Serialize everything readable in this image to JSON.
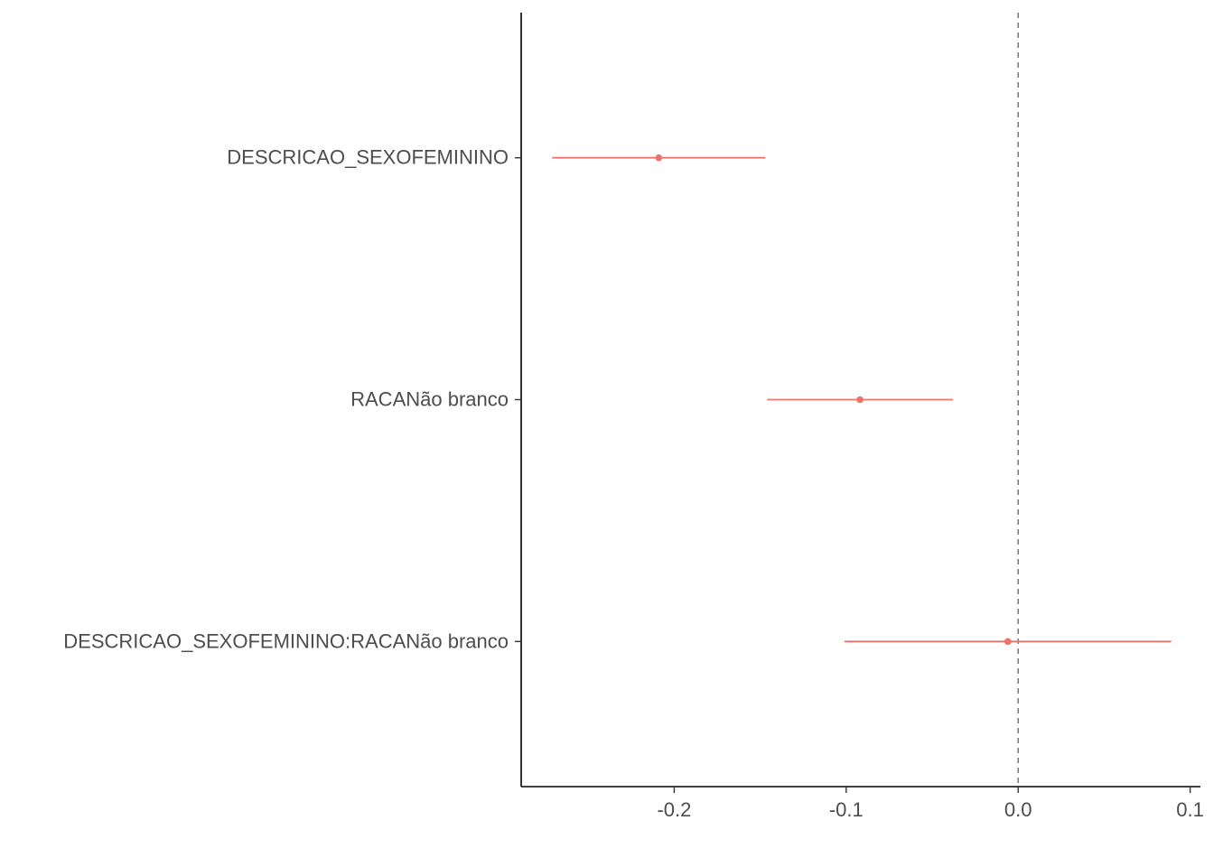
{
  "chart_data": {
    "type": "coefficient-plot",
    "title": "",
    "xlabel": "",
    "ylabel": "",
    "xlim": [
      -0.289,
      0.106
    ],
    "x_ticks": [
      -0.2,
      -0.1,
      0.0,
      0.1
    ],
    "x_tick_labels": [
      "-0.2",
      "-0.1",
      "0.0",
      "0.1"
    ],
    "reference_line": {
      "x": 0.0,
      "style": "dashed"
    },
    "grid": false,
    "legend": "none",
    "color": "#f0736b",
    "terms": [
      {
        "label": "DESCRICAO_SEXOFEMININO",
        "estimate": -0.209,
        "conf_low": -0.271,
        "conf_high": -0.147
      },
      {
        "label": "RACANão branco",
        "estimate": -0.092,
        "conf_low": -0.146,
        "conf_high": -0.038
      },
      {
        "label": "DESCRICAO_SEXOFEMININO:RACANão branco",
        "estimate": -0.006,
        "conf_low": -0.101,
        "conf_high": 0.089
      }
    ]
  }
}
